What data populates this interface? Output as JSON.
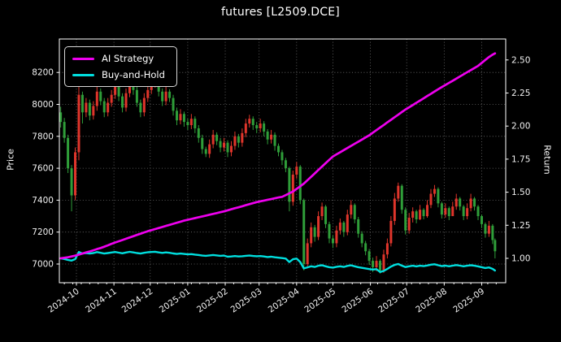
{
  "title": "futures [L2509.DCE]",
  "legend": [
    {
      "label": "AI Strategy",
      "color": "#ee00ee"
    },
    {
      "label": "Buy-and-Hold",
      "color": "#00dede"
    }
  ],
  "axes": {
    "left_label": "Price",
    "right_label": "Return"
  },
  "chart_data": {
    "type": "candlestick+line",
    "title": "futures [L2509.DCE]",
    "grid": true,
    "legend_position": "upper left",
    "style": {
      "background": "#000000",
      "text_color": "#ffffff",
      "grid_color": "#6e6e6e",
      "frame_color": "#ffffff",
      "up_color": "#df352b",
      "down_color": "#2f9e39"
    },
    "left_axis": {
      "label": "Price",
      "range": [
        6880,
        8410
      ],
      "ticks": [
        7000,
        7200,
        7400,
        7600,
        7800,
        8000,
        8200
      ]
    },
    "right_axis": {
      "label": "Return",
      "range": [
        0.82,
        2.66
      ],
      "ticks": [
        1.0,
        1.25,
        1.5,
        1.75,
        2.0,
        2.25,
        2.5
      ]
    },
    "x_axis": {
      "tick_dates": [
        "2024-10-01",
        "2024-11-01",
        "2024-12-01",
        "2025-01-01",
        "2025-02-01",
        "2025-03-01",
        "2025-04-01",
        "2025-05-01",
        "2025-06-01",
        "2025-07-01",
        "2025-08-01",
        "2025-09-01"
      ],
      "tick_labels": [
        "2024-10",
        "2024-11",
        "2024-12",
        "2025-01",
        "2025-02",
        "2025-03",
        "2025-04",
        "2025-05",
        "2025-06",
        "2025-07",
        "2025-08",
        "2025-09"
      ]
    },
    "candles": {
      "dates": [
        "2024-09-18",
        "2024-09-21",
        "2024-09-24",
        "2024-09-27",
        "2024-09-30",
        "2024-10-03",
        "2024-10-06",
        "2024-10-09",
        "2024-10-12",
        "2024-10-15",
        "2024-10-18",
        "2024-10-21",
        "2024-10-24",
        "2024-10-27",
        "2024-10-30",
        "2024-11-02",
        "2024-11-05",
        "2024-11-08",
        "2024-11-11",
        "2024-11-14",
        "2024-11-17",
        "2024-11-20",
        "2024-11-23",
        "2024-11-26",
        "2024-11-29",
        "2024-12-02",
        "2024-12-05",
        "2024-12-08",
        "2024-12-11",
        "2024-12-14",
        "2024-12-17",
        "2024-12-20",
        "2024-12-23",
        "2024-12-26",
        "2024-12-29",
        "2025-01-01",
        "2025-01-04",
        "2025-01-07",
        "2025-01-10",
        "2025-01-13",
        "2025-01-16",
        "2025-01-19",
        "2025-01-22",
        "2025-01-25",
        "2025-01-28",
        "2025-01-31",
        "2025-02-03",
        "2025-02-06",
        "2025-02-09",
        "2025-02-12",
        "2025-02-15",
        "2025-02-18",
        "2025-02-21",
        "2025-02-24",
        "2025-02-27",
        "2025-03-02",
        "2025-03-05",
        "2025-03-08",
        "2025-03-11",
        "2025-03-14",
        "2025-03-17",
        "2025-03-20",
        "2025-03-23",
        "2025-03-26",
        "2025-03-29",
        "2025-04-01",
        "2025-04-04",
        "2025-04-07",
        "2025-04-10",
        "2025-04-13",
        "2025-04-16",
        "2025-04-19",
        "2025-04-22",
        "2025-04-25",
        "2025-04-28",
        "2025-05-01",
        "2025-05-04",
        "2025-05-07",
        "2025-05-10",
        "2025-05-13",
        "2025-05-16",
        "2025-05-19",
        "2025-05-22",
        "2025-05-25",
        "2025-05-28",
        "2025-05-31",
        "2025-06-03",
        "2025-06-06",
        "2025-06-09",
        "2025-06-12",
        "2025-06-15",
        "2025-06-18",
        "2025-06-21",
        "2025-06-24",
        "2025-06-27",
        "2025-06-30",
        "2025-07-03",
        "2025-07-06",
        "2025-07-09",
        "2025-07-12",
        "2025-07-15",
        "2025-07-18",
        "2025-07-21",
        "2025-07-24",
        "2025-07-27",
        "2025-07-30",
        "2025-08-02",
        "2025-08-05",
        "2025-08-08",
        "2025-08-11",
        "2025-08-14",
        "2025-08-17",
        "2025-08-20",
        "2025-08-23",
        "2025-08-26",
        "2025-08-29",
        "2025-09-01",
        "2025-09-04",
        "2025-09-07",
        "2025-09-10",
        "2025-09-12"
      ],
      "open": [
        7950,
        7890,
        7790,
        7600,
        7430,
        7700,
        8060,
        7950,
        8010,
        7930,
        7990,
        8080,
        8020,
        7950,
        8010,
        8060,
        8110,
        8050,
        7980,
        8070,
        8140,
        8090,
        8010,
        7950,
        8040,
        8090,
        8130,
        8160,
        8080,
        8020,
        8080,
        8040,
        7960,
        7900,
        7940,
        7890,
        7870,
        7910,
        7850,
        7790,
        7720,
        7690,
        7750,
        7810,
        7770,
        7730,
        7760,
        7700,
        7740,
        7800,
        7760,
        7820,
        7880,
        7910,
        7870,
        7850,
        7880,
        7830,
        7780,
        7810,
        7740,
        7700,
        7650,
        7600,
        7390,
        7560,
        7610,
        7400,
        7000,
        7130,
        7230,
        7170,
        7300,
        7360,
        7250,
        7160,
        7130,
        7210,
        7260,
        7200,
        7310,
        7370,
        7280,
        7190,
        7130,
        7080,
        7020,
        6980,
        7020,
        6960,
        7060,
        7130,
        7270,
        7410,
        7490,
        7340,
        7210,
        7290,
        7330,
        7280,
        7340,
        7300,
        7370,
        7440,
        7470,
        7380,
        7310,
        7350,
        7300,
        7360,
        7410,
        7360,
        7300,
        7350,
        7410,
        7360,
        7300,
        7250,
        7190,
        7240,
        7150
      ],
      "high": [
        7985,
        7915,
        7810,
        7620,
        7730,
        8255,
        8080,
        8040,
        8030,
        8020,
        8110,
        8100,
        8040,
        8040,
        8090,
        8140,
        8130,
        8070,
        8100,
        8170,
        8155,
        8110,
        8030,
        8070,
        8120,
        8160,
        8185,
        8175,
        8100,
        8110,
        8095,
        8060,
        7980,
        7970,
        7955,
        7910,
        7940,
        7925,
        7870,
        7810,
        7735,
        7780,
        7840,
        7825,
        7790,
        7790,
        7775,
        7770,
        7830,
        7815,
        7850,
        7910,
        7935,
        7925,
        7890,
        7910,
        7895,
        7845,
        7840,
        7825,
        7755,
        7715,
        7665,
        7610,
        7585,
        7640,
        7620,
        7410,
        7160,
        7260,
        7245,
        7330,
        7385,
        7370,
        7265,
        7180,
        7240,
        7285,
        7270,
        7340,
        7400,
        7380,
        7295,
        7205,
        7145,
        7095,
        7040,
        7050,
        7030,
        7090,
        7160,
        7300,
        7445,
        7510,
        7500,
        7355,
        7320,
        7355,
        7340,
        7370,
        7350,
        7400,
        7470,
        7495,
        7480,
        7390,
        7380,
        7360,
        7390,
        7440,
        7420,
        7370,
        7380,
        7440,
        7420,
        7370,
        7310,
        7260,
        7270,
        7250,
        7160
      ],
      "low": [
        7855,
        7760,
        7570,
        7330,
        7400,
        7650,
        7880,
        7920,
        7900,
        7905,
        7960,
        7995,
        7920,
        7925,
        7985,
        8035,
        8020,
        7950,
        7955,
        8045,
        8060,
        7985,
        7920,
        7925,
        8015,
        8065,
        8105,
        8050,
        7990,
        7995,
        8015,
        7930,
        7870,
        7875,
        7860,
        7840,
        7845,
        7820,
        7760,
        7690,
        7670,
        7665,
        7725,
        7745,
        7700,
        7705,
        7670,
        7675,
        7715,
        7730,
        7735,
        7795,
        7855,
        7840,
        7820,
        7825,
        7800,
        7750,
        7755,
        7710,
        7675,
        7620,
        7575,
        7330,
        7365,
        7535,
        7375,
        6960,
        6985,
        7105,
        7140,
        7150,
        7275,
        7225,
        7130,
        7100,
        7105,
        7185,
        7170,
        7180,
        7285,
        7255,
        7165,
        7105,
        7055,
        6995,
        6950,
        6955,
        6940,
        6945,
        7035,
        7110,
        7245,
        7390,
        7315,
        7185,
        7190,
        7260,
        7255,
        7275,
        7280,
        7290,
        7350,
        7420,
        7355,
        7285,
        7290,
        7275,
        7330,
        7340,
        7335,
        7275,
        7280,
        7330,
        7335,
        7275,
        7225,
        7165,
        7170,
        7125,
        7035
      ],
      "close": [
        7890,
        7790,
        7600,
        7430,
        7700,
        8060,
        7950,
        8010,
        7930,
        7990,
        8080,
        8020,
        7950,
        8010,
        8060,
        8110,
        8050,
        7980,
        8070,
        8140,
        8090,
        8010,
        7950,
        8040,
        8090,
        8130,
        8160,
        8080,
        8020,
        8080,
        8040,
        7960,
        7900,
        7940,
        7890,
        7870,
        7910,
        7850,
        7790,
        7720,
        7690,
        7750,
        7810,
        7770,
        7730,
        7760,
        7700,
        7740,
        7800,
        7760,
        7820,
        7880,
        7910,
        7870,
        7850,
        7880,
        7830,
        7780,
        7810,
        7740,
        7700,
        7650,
        7600,
        7390,
        7560,
        7610,
        7400,
        7000,
        7130,
        7230,
        7170,
        7300,
        7360,
        7250,
        7160,
        7130,
        7210,
        7260,
        7200,
        7310,
        7370,
        7280,
        7190,
        7130,
        7080,
        7020,
        6980,
        7020,
        6960,
        7060,
        7130,
        7270,
        7410,
        7490,
        7340,
        7210,
        7290,
        7330,
        7280,
        7340,
        7300,
        7370,
        7440,
        7470,
        7380,
        7310,
        7350,
        7300,
        7360,
        7410,
        7360,
        7300,
        7350,
        7410,
        7360,
        7300,
        7250,
        7190,
        7240,
        7150,
        7080
      ]
    },
    "series": [
      {
        "name": "AI Strategy",
        "axis": "right",
        "color": "#ee00ee",
        "values": [
          1.0,
          1.004,
          1.008,
          1.014,
          1.02,
          1.028,
          1.036,
          1.045,
          1.052,
          1.061,
          1.07,
          1.078,
          1.088,
          1.098,
          1.11,
          1.12,
          1.129,
          1.138,
          1.148,
          1.158,
          1.167,
          1.177,
          1.186,
          1.196,
          1.205,
          1.213,
          1.221,
          1.229,
          1.237,
          1.245,
          1.253,
          1.261,
          1.269,
          1.277,
          1.285,
          1.291,
          1.298,
          1.304,
          1.311,
          1.317,
          1.323,
          1.33,
          1.336,
          1.342,
          1.349,
          1.355,
          1.363,
          1.371,
          1.379,
          1.386,
          1.394,
          1.402,
          1.41,
          1.417,
          1.425,
          1.431,
          1.437,
          1.443,
          1.448,
          1.454,
          1.46,
          1.465,
          1.478,
          1.492,
          1.505,
          1.525,
          1.545,
          1.565,
          1.591,
          1.617,
          1.642,
          1.668,
          1.694,
          1.719,
          1.745,
          1.77,
          1.786,
          1.802,
          1.818,
          1.834,
          1.85,
          1.866,
          1.882,
          1.898,
          1.914,
          1.93,
          1.95,
          1.969,
          1.989,
          2.008,
          2.028,
          2.047,
          2.067,
          2.086,
          2.106,
          2.125,
          2.142,
          2.159,
          2.176,
          2.193,
          2.21,
          2.227,
          2.244,
          2.261,
          2.278,
          2.295,
          2.311,
          2.327,
          2.343,
          2.359,
          2.375,
          2.391,
          2.407,
          2.423,
          2.439,
          2.455,
          2.478,
          2.5,
          2.522,
          2.54,
          2.55
        ]
      },
      {
        "name": "Buy-and-Hold",
        "axis": "right",
        "color": "#00dede",
        "values": [
          1.0,
          0.995,
          0.988,
          0.983,
          0.994,
          1.048,
          1.036,
          1.04,
          1.036,
          1.04,
          1.047,
          1.042,
          1.036,
          1.04,
          1.044,
          1.048,
          1.043,
          1.038,
          1.044,
          1.049,
          1.045,
          1.04,
          1.036,
          1.042,
          1.046,
          1.048,
          1.05,
          1.045,
          1.041,
          1.045,
          1.042,
          1.037,
          1.033,
          1.036,
          1.033,
          1.03,
          1.032,
          1.028,
          1.025,
          1.021,
          1.019,
          1.022,
          1.025,
          1.022,
          1.019,
          1.021,
          1.012,
          1.014,
          1.017,
          1.014,
          1.016,
          1.019,
          1.021,
          1.018,
          1.016,
          1.017,
          1.014,
          1.01,
          1.012,
          1.008,
          1.005,
          1.002,
          0.998,
          0.972,
          0.993,
          0.998,
          0.972,
          0.924,
          0.932,
          0.94,
          0.935,
          0.944,
          0.948,
          0.94,
          0.933,
          0.93,
          0.936,
          0.94,
          0.935,
          0.943,
          0.947,
          0.94,
          0.933,
          0.928,
          0.924,
          0.919,
          0.915,
          0.918,
          0.897,
          0.905,
          0.92,
          0.938,
          0.95,
          0.957,
          0.945,
          0.934,
          0.94,
          0.944,
          0.939,
          0.944,
          0.941,
          0.946,
          0.952,
          0.955,
          0.948,
          0.941,
          0.945,
          0.94,
          0.945,
          0.949,
          0.945,
          0.94,
          0.944,
          0.948,
          0.944,
          0.939,
          0.933,
          0.927,
          0.931,
          0.92,
          0.908
        ]
      }
    ]
  }
}
